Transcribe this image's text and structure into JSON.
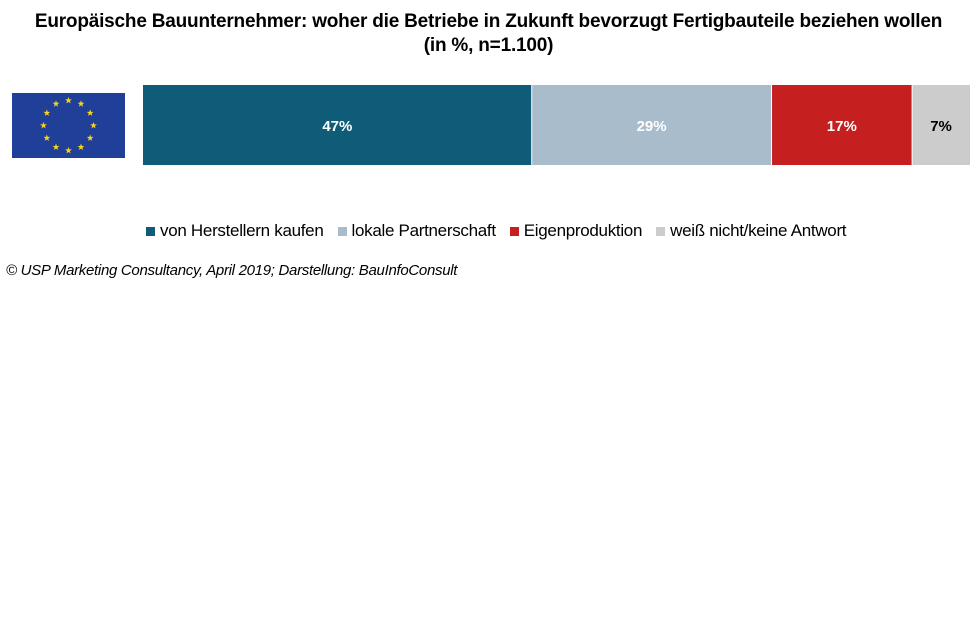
{
  "chart_data": {
    "type": "bar",
    "orientation": "horizontal-stacked",
    "title": "Europäische Bauunternehmer:  woher die Betriebe in Zukunft bevorzugt Fertigbauteile beziehen wollen",
    "subtitle": "(in %, n=1.100)",
    "unit": "%",
    "series": [
      {
        "name": "von Herstellern kaufen",
        "value": 47,
        "label": "47%",
        "color": "#0e5c78",
        "label_color": "#ffffff"
      },
      {
        "name": "lokale Partnerschaft",
        "value": 29,
        "label": "29%",
        "color": "#a8bccb",
        "label_color": "#ffffff"
      },
      {
        "name": "Eigenproduktion",
        "value": 17,
        "label": "17%",
        "color": "#c5201f",
        "label_color": "#ffffff"
      },
      {
        "name": "weiß nicht/keine Antwort",
        "value": 7,
        "label": "7%",
        "color": "#cccccc",
        "label_color": "#000000"
      }
    ],
    "legend_position": "bottom",
    "grid": false
  },
  "flag": {
    "icon": "eu-flag-icon",
    "background": "#1f3f99",
    "star_color": "#f7d31a"
  },
  "source": "© USP Marketing Consultancy, April 2019; Darstellung: BauInfoConsult"
}
